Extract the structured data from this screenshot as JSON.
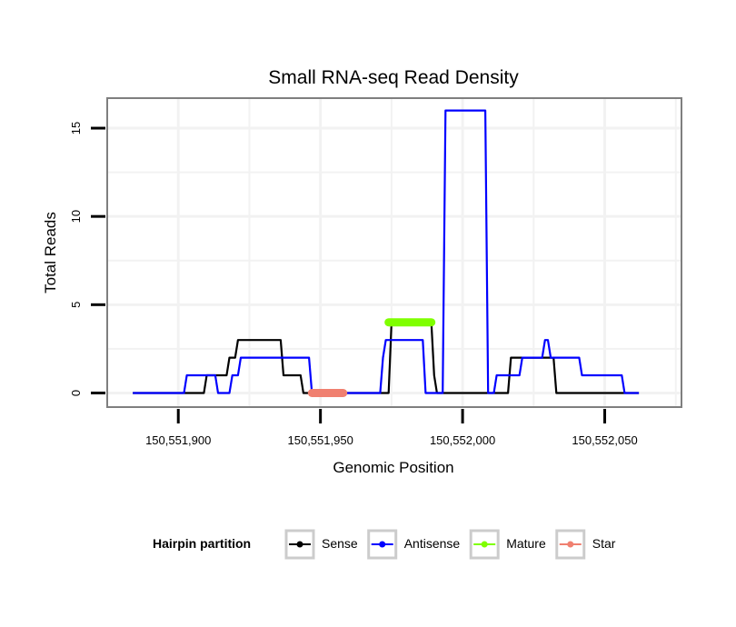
{
  "chart_data": {
    "type": "line",
    "title": "Small RNA-seq Read Density",
    "xlabel": "Genomic Position",
    "ylabel": "Total Reads",
    "xlim": [
      150551875,
      150552077
    ],
    "ylim": [
      -0.8,
      16.7
    ],
    "x_ticks": [
      150551900,
      150551950,
      150552000,
      150552050
    ],
    "x_tick_labels": [
      "150,551,900",
      "150,551,950",
      "150,552,000",
      "150,552,050"
    ],
    "y_ticks": [
      0,
      5,
      10,
      15
    ],
    "y_tick_labels": [
      "0",
      "5",
      "10",
      "15"
    ],
    "grid": true,
    "legend": {
      "title": "Hairpin partition",
      "position": "bottom",
      "entries": [
        "Sense",
        "Antisense",
        "Mature",
        "Star"
      ]
    },
    "colors": {
      "Sense": "#000000",
      "Antisense": "#0000ff",
      "Mature": "#7fff00",
      "Star": "#f08070",
      "panel_border": "#7f7f7f",
      "grid": "#f2f2f2"
    },
    "series": [
      {
        "name": "Sense",
        "x": [
          150551884,
          150551909,
          150551910,
          150551917,
          150551918,
          150551920,
          150551921,
          150551936,
          150551937,
          150551943,
          150551944,
          150551974,
          150551975,
          150551989,
          150551990,
          150551991,
          150552016,
          150552017,
          150552032,
          150552033,
          150552062
        ],
        "y": [
          0,
          0,
          1,
          1,
          2,
          2,
          3,
          3,
          1,
          1,
          0,
          0,
          4,
          4,
          1,
          0,
          0,
          2,
          2,
          0,
          0
        ]
      },
      {
        "name": "Antisense",
        "x": [
          150551884,
          150551902,
          150551903,
          150551913,
          150551914,
          150551918,
          150551919,
          150551921,
          150551922,
          150551936,
          150551937,
          150551946,
          150551947,
          150551971,
          150551972,
          150551973,
          150551974,
          150551986,
          150551987,
          150551993,
          150551994,
          150552008,
          150552009,
          150552011,
          150552012,
          150552020,
          150552021,
          150552028,
          150552029,
          150552030,
          150552031,
          150552041,
          150552042,
          150552056,
          150552057,
          150552062
        ],
        "y": [
          0,
          0,
          1,
          1,
          0,
          0,
          1,
          1,
          2,
          2,
          2,
          2,
          0,
          0,
          2,
          3,
          3,
          3,
          0,
          0,
          16,
          16,
          0,
          0,
          1,
          1,
          2,
          2,
          3,
          3,
          2,
          2,
          1,
          1,
          0,
          0
        ]
      },
      {
        "name": "Mature",
        "x": [
          150551974,
          150551989
        ],
        "y": [
          4,
          4
        ]
      },
      {
        "name": "Star",
        "x": [
          150551947,
          150551958
        ],
        "y": [
          0,
          0
        ]
      }
    ]
  }
}
